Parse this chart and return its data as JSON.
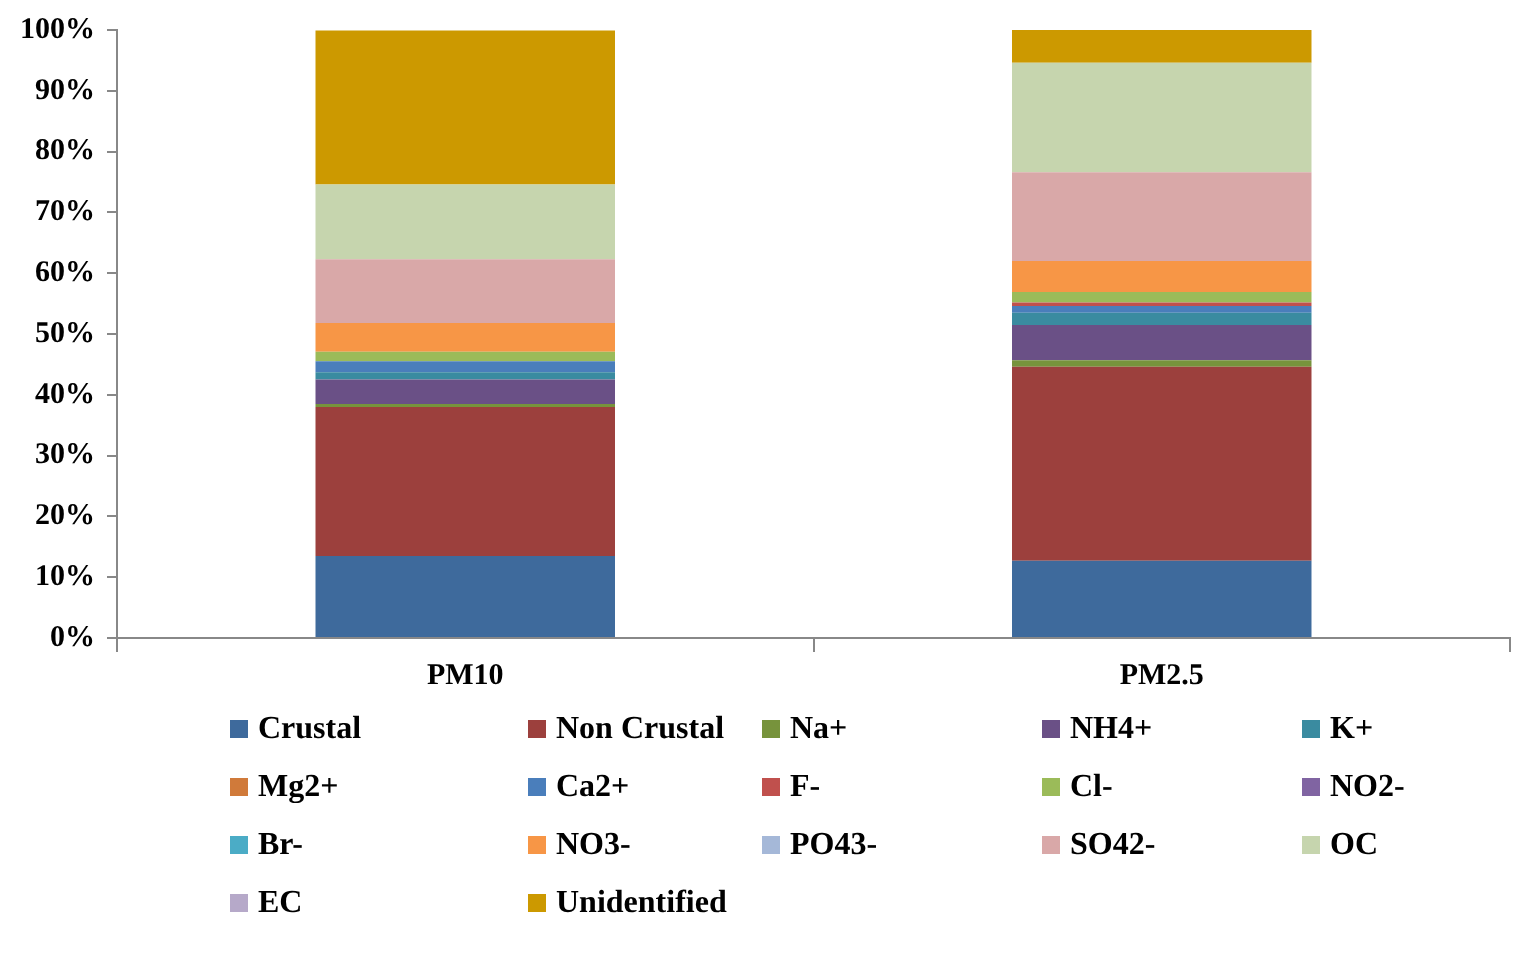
{
  "chart_data": {
    "type": "bar",
    "stacked": true,
    "categories": [
      "PM10",
      "PM2.5"
    ],
    "series": [
      {
        "name": "Crustal",
        "color": "#3e6a9c",
        "values": [
          13.5,
          12.7
        ]
      },
      {
        "name": "Non Crustal",
        "color": "#9c403d",
        "values": [
          24.5,
          31.9
        ]
      },
      {
        "name": "Na+",
        "color": "#77933c",
        "values": [
          0.5,
          1.1
        ]
      },
      {
        "name": "NH4+",
        "color": "#6a5086",
        "values": [
          4,
          5.8
        ]
      },
      {
        "name": "K+",
        "color": "#3a8ba0",
        "values": [
          1.2,
          2
        ]
      },
      {
        "name": "Mg2+",
        "color": "#d07a3a",
        "values": [
          0,
          0
        ]
      },
      {
        "name": "Ca2+",
        "color": "#4a7ebb",
        "values": [
          1.8,
          1.1
        ]
      },
      {
        "name": "F-",
        "color": "#c0504d",
        "values": [
          null,
          0.6
        ]
      },
      {
        "name": "Cl-",
        "color": "#9bbb59",
        "values": [
          1.6,
          1.7
        ]
      },
      {
        "name": "NO2-",
        "color": "#8064a2",
        "values": [
          0,
          0
        ]
      },
      {
        "name": "Br-",
        "color": "#4bacc6",
        "values": [
          0,
          0
        ]
      },
      {
        "name": "NO3-",
        "color": "#f79646",
        "values": [
          4.7,
          5.1
        ]
      },
      {
        "name": "PO43-",
        "color": "#a5b8d8",
        "values": [
          0,
          0
        ]
      },
      {
        "name": "SO42-",
        "color": "#d9a8a8",
        "values": [
          10.5,
          14.6
        ]
      },
      {
        "name": "OC",
        "color": "#c6d5ae",
        "values": [
          12.3,
          18
        ]
      },
      {
        "name": "EC",
        "color": "#b6a9c9",
        "values": [
          0,
          0
        ]
      },
      {
        "name": "Unidentified",
        "color": "#cc9900",
        "values": [
          25.3,
          5.4
        ]
      }
    ],
    "ylim": [
      0,
      100
    ],
    "yticks": [
      {
        "value": 0,
        "label": "0%"
      },
      {
        "value": 10,
        "label": "10%"
      },
      {
        "value": 20,
        "label": "20%"
      },
      {
        "value": 30,
        "label": "30%"
      },
      {
        "value": 40,
        "label": "40%"
      },
      {
        "value": 50,
        "label": "50%"
      },
      {
        "value": 60,
        "label": "60%"
      },
      {
        "value": 70,
        "label": "70%"
      },
      {
        "value": 80,
        "label": "80%"
      },
      {
        "value": 90,
        "label": "90%"
      },
      {
        "value": 100,
        "label": "100%"
      }
    ],
    "grid": false,
    "legend": "bottom"
  }
}
